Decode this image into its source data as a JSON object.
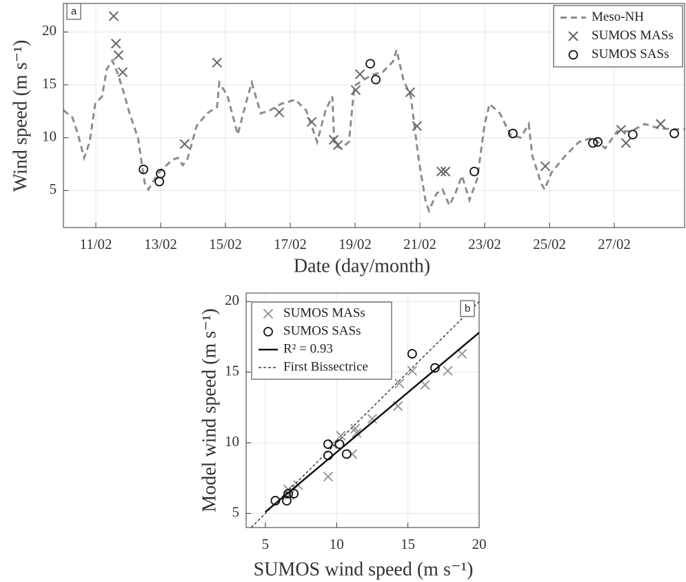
{
  "chart_data": [
    {
      "type": "line",
      "panel": "a",
      "x_label": "Date (day/month)",
      "y_label": "Wind speed (m s⁻¹)",
      "xlim": [
        10,
        29.17
      ],
      "ylim": [
        1.5,
        22.7
      ],
      "grid": true,
      "legend": "upper right",
      "xticks": [
        {
          "value": 11,
          "label": "11/02"
        },
        {
          "value": 13,
          "label": "13/02"
        },
        {
          "value": 15,
          "label": "15/02"
        },
        {
          "value": 17,
          "label": "17/02"
        },
        {
          "value": 19,
          "label": "19/02"
        },
        {
          "value": 21,
          "label": "21/02"
        },
        {
          "value": 23,
          "label": "23/02"
        },
        {
          "value": 25,
          "label": "25/02"
        },
        {
          "value": 27,
          "label": "27/02"
        }
      ],
      "yticks": [
        5,
        10,
        15,
        20
      ],
      "series": [
        {
          "name": "Meso-NH",
          "kind": "dashed",
          "color": "#8c8c8c",
          "x": [
            10.0,
            10.28,
            10.45,
            10.64,
            10.81,
            10.98,
            11.19,
            11.34,
            11.51,
            11.66,
            11.87,
            12.04,
            12.3,
            12.51,
            12.62,
            12.94,
            13.36,
            13.53,
            13.68,
            13.83,
            14.11,
            14.43,
            14.74,
            14.81,
            15.06,
            15.38,
            15.66,
            15.81,
            16.09,
            16.38,
            16.72,
            17.15,
            17.49,
            17.83,
            18.09,
            18.3,
            18.36,
            18.57,
            18.81,
            18.98,
            19.28,
            19.57,
            19.85,
            20.17,
            20.28,
            20.49,
            20.72,
            20.96,
            21.17,
            21.28,
            21.51,
            21.7,
            21.91,
            22.09,
            22.3,
            22.53,
            22.77,
            23.0,
            23.15,
            23.47,
            23.79,
            24.11,
            24.36,
            24.47,
            24.74,
            24.85,
            25.06,
            25.49,
            25.91,
            26.34,
            26.72,
            27.09,
            27.51,
            27.94,
            28.36,
            28.79,
            29.17
          ],
          "values": [
            12.6,
            11.9,
            10.3,
            8.1,
            9.6,
            13.2,
            13.9,
            16.5,
            17.3,
            16.2,
            14.2,
            12.3,
            10.0,
            5.7,
            5.1,
            6.7,
            7.9,
            8.1,
            7.4,
            8.0,
            11.1,
            12.3,
            12.9,
            15.2,
            14.0,
            10.3,
            13.6,
            15.2,
            12.3,
            12.6,
            13.2,
            13.6,
            12.6,
            9.6,
            12.6,
            13.9,
            9.3,
            9.0,
            9.6,
            14.9,
            15.5,
            16.0,
            16.2,
            17.2,
            18.3,
            15.5,
            13.9,
            8.0,
            4.1,
            3.1,
            4.7,
            5.1,
            3.6,
            4.7,
            6.4,
            4.1,
            6.1,
            11.3,
            13.2,
            12.3,
            10.3,
            10.0,
            11.3,
            8.3,
            5.7,
            5.1,
            6.7,
            8.3,
            9.6,
            10.0,
            9.0,
            10.6,
            10.6,
            11.3,
            10.9,
            10.8,
            10.8
          ]
        },
        {
          "name": "SUMOS MASs",
          "kind": "x",
          "color": "#666666",
          "x": [
            11.55,
            11.62,
            11.7,
            11.83,
            13.74,
            14.74,
            16.66,
            17.66,
            18.34,
            18.47,
            19.02,
            19.15,
            20.7,
            20.91,
            21.66,
            21.79,
            24.87,
            27.21,
            27.36,
            28.43
          ],
          "values": [
            21.5,
            18.9,
            17.8,
            16.2,
            9.4,
            17.1,
            12.4,
            11.5,
            9.8,
            9.3,
            14.5,
            16.0,
            14.3,
            11.1,
            6.8,
            6.8,
            7.3,
            10.75,
            9.5,
            11.3
          ]
        },
        {
          "name": "SUMOS SASs",
          "kind": "o",
          "color": "#111111",
          "x": [
            12.47,
            12.96,
            13.0,
            19.47,
            19.64,
            22.68,
            23.87,
            26.34,
            26.49,
            27.57,
            28.85
          ],
          "values": [
            7.0,
            5.85,
            6.6,
            17.0,
            15.5,
            6.8,
            10.4,
            9.5,
            9.6,
            10.3,
            10.4
          ]
        }
      ]
    },
    {
      "type": "scatter",
      "panel": "b",
      "x_label": "SUMOS wind speed (m s⁻¹)",
      "y_label": "Model wind speed (m s⁻¹)",
      "xlim": [
        3.65,
        20
      ],
      "ylim": [
        4.0,
        20.6
      ],
      "grid": true,
      "legend": "upper left",
      "xticks": [
        5,
        10,
        15,
        20
      ],
      "yticks": [
        5,
        10,
        15,
        20
      ],
      "series": [
        {
          "name": "SUMOS MASs",
          "kind": "x",
          "color": "#999999",
          "x": [
            15.3,
            14.4,
            16.2,
            17.8,
            18.8,
            14.3,
            12.5,
            11.3,
            11.4,
            10.3,
            9.7,
            11.1,
            9.4,
            6.6,
            7.3,
            6.7
          ],
          "values": [
            15.1,
            14.2,
            14.1,
            15.1,
            16.3,
            12.6,
            11.7,
            11.0,
            10.7,
            10.5,
            9.9,
            9.2,
            7.6,
            6.7,
            7.0,
            6.3
          ]
        },
        {
          "name": "SUMOS SASs",
          "kind": "o",
          "color": "#111111",
          "x": [
            5.7,
            6.5,
            6.6,
            7.0,
            9.4,
            9.4,
            10.2,
            10.7,
            15.3,
            16.9
          ],
          "values": [
            5.9,
            5.9,
            6.4,
            6.4,
            9.9,
            9.1,
            9.9,
            9.2,
            16.3,
            15.3
          ]
        },
        {
          "name": "R² = 0.93",
          "kind": "solid",
          "color": "#111111",
          "x": [
            5,
            20
          ],
          "values": [
            5.1,
            17.8
          ]
        },
        {
          "name": "First Bissectrice",
          "kind": "dashed",
          "color": "#111111",
          "x": [
            4.0,
            20
          ],
          "values": [
            4.0,
            20
          ]
        }
      ]
    }
  ]
}
